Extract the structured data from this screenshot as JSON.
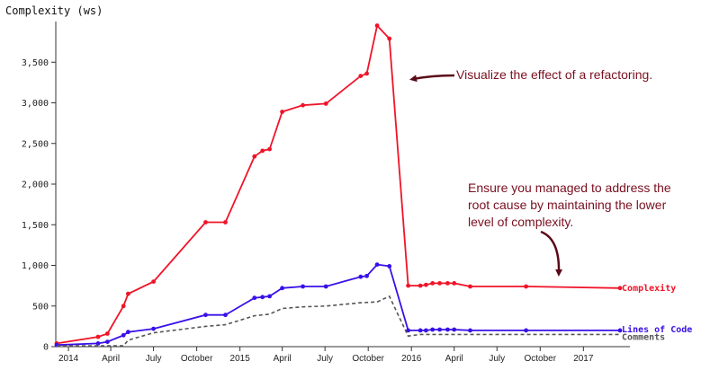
{
  "chart_data": {
    "type": "line",
    "ylabel": "Complexity (ws)",
    "ylim": [
      0,
      4000
    ],
    "yticks": [
      0,
      500,
      1000,
      1500,
      2000,
      2500,
      3000,
      3500
    ],
    "ytick_labels": [
      "0",
      "500",
      "1,000",
      "1,500",
      "2,000",
      "2,500",
      "3,000",
      "3,500"
    ],
    "xlim": [
      "2013-12-05",
      "2017-04-10"
    ],
    "xticks": [
      {
        "date": "2014-01-01",
        "label": "2014"
      },
      {
        "date": "2014-04-01",
        "label": "April"
      },
      {
        "date": "2014-07-01",
        "label": "July"
      },
      {
        "date": "2014-10-01",
        "label": "October"
      },
      {
        "date": "2015-01-01",
        "label": "2015"
      },
      {
        "date": "2015-04-01",
        "label": "April"
      },
      {
        "date": "2015-07-01",
        "label": "July"
      },
      {
        "date": "2015-10-01",
        "label": "October"
      },
      {
        "date": "2016-01-01",
        "label": "2016"
      },
      {
        "date": "2016-04-01",
        "label": "April"
      },
      {
        "date": "2016-07-01",
        "label": "July"
      },
      {
        "date": "2016-10-01",
        "label": "October"
      },
      {
        "date": "2017-01-01",
        "label": "2017"
      }
    ],
    "series": [
      {
        "name": "Complexity",
        "color": "#f01428",
        "style": "solid",
        "markers": true,
        "points": [
          [
            "2013-12-07",
            40
          ],
          [
            "2014-03-05",
            120
          ],
          [
            "2014-03-25",
            160
          ],
          [
            "2014-04-28",
            500
          ],
          [
            "2014-05-08",
            650
          ],
          [
            "2014-07-01",
            800
          ],
          [
            "2014-10-20",
            1530
          ],
          [
            "2014-12-01",
            1530
          ],
          [
            "2015-02-01",
            2340
          ],
          [
            "2015-02-18",
            2410
          ],
          [
            "2015-03-05",
            2430
          ],
          [
            "2015-04-01",
            2890
          ],
          [
            "2015-05-15",
            2970
          ],
          [
            "2015-07-03",
            2990
          ],
          [
            "2015-09-15",
            3330
          ],
          [
            "2015-09-28",
            3360
          ],
          [
            "2015-10-20",
            3950
          ],
          [
            "2015-11-15",
            3790
          ],
          [
            "2015-12-25",
            750
          ],
          [
            "2016-01-20",
            750
          ],
          [
            "2016-02-01",
            760
          ],
          [
            "2016-02-15",
            780
          ],
          [
            "2016-03-01",
            780
          ],
          [
            "2016-03-18",
            780
          ],
          [
            "2016-04-01",
            780
          ],
          [
            "2016-05-05",
            740
          ],
          [
            "2016-09-01",
            740
          ],
          [
            "2017-03-20",
            720
          ]
        ]
      },
      {
        "name": "Lines of Code",
        "color": "#3a10e8",
        "style": "solid",
        "markers": true,
        "points": [
          [
            "2013-12-07",
            20
          ],
          [
            "2014-03-05",
            40
          ],
          [
            "2014-03-25",
            60
          ],
          [
            "2014-04-28",
            140
          ],
          [
            "2014-05-08",
            180
          ],
          [
            "2014-07-01",
            220
          ],
          [
            "2014-10-20",
            390
          ],
          [
            "2014-12-01",
            390
          ],
          [
            "2015-02-01",
            600
          ],
          [
            "2015-02-18",
            610
          ],
          [
            "2015-03-05",
            620
          ],
          [
            "2015-04-01",
            720
          ],
          [
            "2015-05-15",
            740
          ],
          [
            "2015-07-03",
            740
          ],
          [
            "2015-09-15",
            860
          ],
          [
            "2015-09-28",
            870
          ],
          [
            "2015-10-20",
            1010
          ],
          [
            "2015-11-15",
            990
          ],
          [
            "2015-12-25",
            200
          ],
          [
            "2016-01-20",
            200
          ],
          [
            "2016-02-01",
            200
          ],
          [
            "2016-02-15",
            210
          ],
          [
            "2016-03-01",
            210
          ],
          [
            "2016-03-18",
            210
          ],
          [
            "2016-04-01",
            210
          ],
          [
            "2016-05-05",
            200
          ],
          [
            "2016-09-01",
            200
          ],
          [
            "2017-03-20",
            200
          ]
        ]
      },
      {
        "name": "Comments",
        "color": "#555555",
        "style": "dashed",
        "markers": false,
        "points": [
          [
            "2013-12-07",
            10
          ],
          [
            "2014-03-05",
            10
          ],
          [
            "2014-04-28",
            10
          ],
          [
            "2014-05-08",
            80
          ],
          [
            "2014-07-01",
            170
          ],
          [
            "2014-10-20",
            250
          ],
          [
            "2014-12-01",
            270
          ],
          [
            "2015-02-01",
            380
          ],
          [
            "2015-03-05",
            400
          ],
          [
            "2015-04-01",
            470
          ],
          [
            "2015-05-15",
            490
          ],
          [
            "2015-07-03",
            500
          ],
          [
            "2015-09-15",
            540
          ],
          [
            "2015-10-20",
            550
          ],
          [
            "2015-11-15",
            620
          ],
          [
            "2015-12-25",
            130
          ],
          [
            "2016-01-20",
            150
          ],
          [
            "2016-04-01",
            150
          ],
          [
            "2016-09-01",
            150
          ],
          [
            "2017-03-20",
            150
          ]
        ]
      }
    ],
    "annotations": [
      {
        "lines": [
          "Visualize the effect of a refactoring."
        ],
        "color": "#7a1020"
      },
      {
        "lines": [
          "Ensure you managed to address the",
          "root cause by maintaining the lower",
          "level of complexity."
        ],
        "color": "#7a1020"
      }
    ]
  }
}
